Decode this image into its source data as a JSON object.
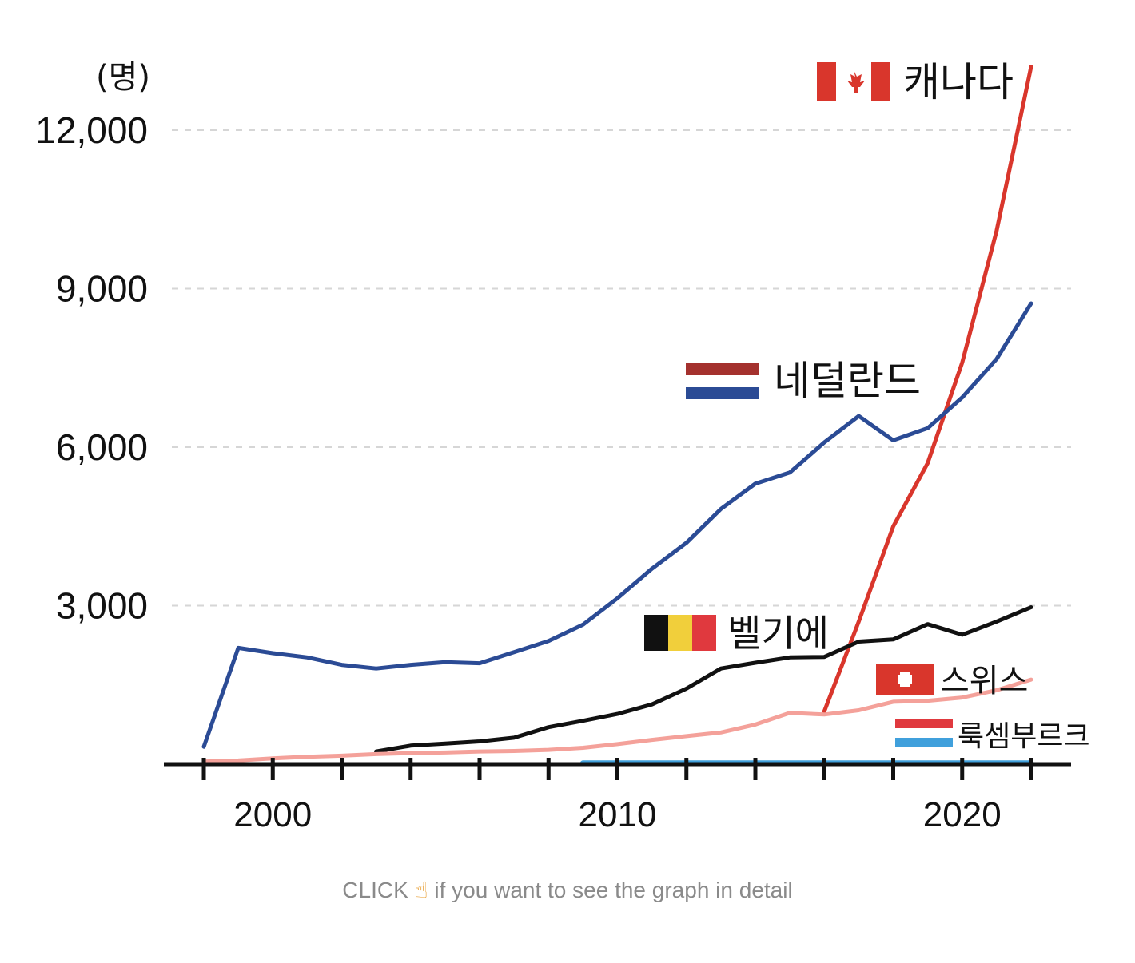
{
  "chart_data": {
    "type": "line",
    "unit_label": "(명)",
    "ylim": [
      0,
      13500
    ],
    "xlim": [
      1997.5,
      2023.5
    ],
    "y_ticks": [
      3000,
      6000,
      9000,
      12000
    ],
    "y_tick_labels": [
      "3,000",
      "6,000",
      "9,000",
      "12,000"
    ],
    "x_tick_labels": [
      {
        "year": 2000,
        "label": "2000"
      },
      {
        "year": 2010,
        "label": "2010"
      },
      {
        "year": 2020,
        "label": "2020"
      }
    ],
    "x_minor_ticks": [
      1998,
      2000,
      2002,
      2004,
      2006,
      2008,
      2010,
      2012,
      2014,
      2016,
      2018,
      2020,
      2022
    ],
    "grid": true,
    "series": [
      {
        "name": "캐나다",
        "color": "#d9362c",
        "points": [
          [
            2016,
            1000
          ],
          [
            2017,
            2700
          ],
          [
            2018,
            4500
          ],
          [
            2019,
            5700
          ],
          [
            2020,
            7600
          ],
          [
            2021,
            10100
          ],
          [
            2022,
            13200
          ]
        ]
      },
      {
        "name": "네덜란드",
        "color": "#2b4b95",
        "points": [
          [
            1998,
            330
          ],
          [
            1999,
            2200
          ],
          [
            2000,
            2100
          ],
          [
            2001,
            2020
          ],
          [
            2002,
            1880
          ],
          [
            2003,
            1810
          ],
          [
            2004,
            1880
          ],
          [
            2005,
            1930
          ],
          [
            2006,
            1910
          ],
          [
            2007,
            2120
          ],
          [
            2008,
            2330
          ],
          [
            2009,
            2640
          ],
          [
            2010,
            3140
          ],
          [
            2011,
            3700
          ],
          [
            2012,
            4190
          ],
          [
            2013,
            4830
          ],
          [
            2014,
            5310
          ],
          [
            2015,
            5520
          ],
          [
            2016,
            6090
          ],
          [
            2017,
            6590
          ],
          [
            2018,
            6130
          ],
          [
            2019,
            6360
          ],
          [
            2020,
            6940
          ],
          [
            2021,
            7670
          ],
          [
            2022,
            8720
          ]
        ]
      },
      {
        "name": "벨기에",
        "color": "#111111",
        "points": [
          [
            2003,
            240
          ],
          [
            2004,
            350
          ],
          [
            2005,
            390
          ],
          [
            2006,
            430
          ],
          [
            2007,
            500
          ],
          [
            2008,
            700
          ],
          [
            2009,
            820
          ],
          [
            2010,
            950
          ],
          [
            2011,
            1130
          ],
          [
            2012,
            1430
          ],
          [
            2013,
            1810
          ],
          [
            2014,
            1920
          ],
          [
            2015,
            2020
          ],
          [
            2016,
            2030
          ],
          [
            2017,
            2320
          ],
          [
            2018,
            2360
          ],
          [
            2019,
            2650
          ],
          [
            2020,
            2450
          ],
          [
            2021,
            2700
          ],
          [
            2022,
            2970
          ]
        ]
      },
      {
        "name": "스위스",
        "color": "#f4a19a",
        "points": [
          [
            1998,
            50
          ],
          [
            1999,
            70
          ],
          [
            2000,
            110
          ],
          [
            2001,
            140
          ],
          [
            2002,
            160
          ],
          [
            2003,
            190
          ],
          [
            2004,
            210
          ],
          [
            2005,
            220
          ],
          [
            2006,
            240
          ],
          [
            2007,
            250
          ],
          [
            2008,
            270
          ],
          [
            2009,
            310
          ],
          [
            2010,
            380
          ],
          [
            2011,
            460
          ],
          [
            2012,
            530
          ],
          [
            2013,
            600
          ],
          [
            2014,
            750
          ],
          [
            2015,
            970
          ],
          [
            2016,
            940
          ],
          [
            2017,
            1020
          ],
          [
            2018,
            1180
          ],
          [
            2019,
            1200
          ],
          [
            2020,
            1260
          ],
          [
            2021,
            1400
          ],
          [
            2022,
            1600
          ]
        ]
      },
      {
        "name": "룩셈부르크",
        "color": "#40a0dc",
        "points": [
          [
            2009,
            20
          ],
          [
            2010,
            20
          ],
          [
            2011,
            20
          ],
          [
            2012,
            20
          ],
          [
            2013,
            20
          ],
          [
            2014,
            20
          ],
          [
            2015,
            20
          ],
          [
            2016,
            20
          ],
          [
            2017,
            20
          ],
          [
            2018,
            20
          ],
          [
            2019,
            20
          ],
          [
            2020,
            20
          ],
          [
            2021,
            20
          ],
          [
            2022,
            20
          ]
        ]
      }
    ]
  },
  "labels": {
    "canada": "캐나다",
    "netherlands": "네덜란드",
    "belgium": "벨기에",
    "switzerland": "스위스",
    "luxembourg": "룩셈부르크"
  },
  "flags": {
    "canada": [
      "#d9362c",
      "#ffffff",
      "#d9362c"
    ],
    "netherlands": [
      "#a4312e",
      "#ffffff",
      "#2b4b95"
    ],
    "belgium": [
      "#111111",
      "#f1cf3b",
      "#e0393e"
    ],
    "switzerland": [
      "#d9362c",
      "#ffffff"
    ],
    "luxembourg": [
      "#e0393e",
      "#ffffff",
      "#40a0dc"
    ]
  },
  "caption": {
    "before": "CLICK",
    "icon": "pointing-hand-icon",
    "after": " if you want to see the graph in detail"
  }
}
